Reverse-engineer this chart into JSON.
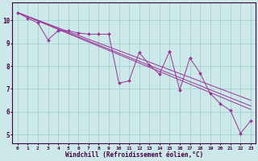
{
  "background_color": "#cce8e8",
  "line_color": "#993399",
  "grid_color": "#99cccc",
  "xlabel": "Windchill (Refroidissement éolien,°C)",
  "xlim": [
    -0.5,
    23.5
  ],
  "ylim": [
    4.6,
    10.8
  ],
  "yticks": [
    5,
    6,
    7,
    8,
    9,
    10
  ],
  "xticks": [
    0,
    1,
    2,
    3,
    4,
    5,
    6,
    7,
    8,
    9,
    10,
    11,
    12,
    13,
    14,
    15,
    16,
    17,
    18,
    19,
    20,
    21,
    22,
    23
  ],
  "series": [
    {
      "x": [
        0,
        1,
        2,
        3,
        4,
        5,
        6,
        7,
        8,
        9,
        10,
        11,
        12,
        13,
        14,
        15,
        16,
        17,
        18,
        19,
        20,
        21,
        22,
        23
      ],
      "y": [
        10.35,
        10.1,
        9.9,
        9.15,
        9.55,
        9.55,
        9.45,
        9.4,
        9.4,
        9.4,
        7.25,
        7.35,
        8.6,
        8.05,
        7.65,
        8.65,
        6.95,
        8.35,
        7.7,
        6.8,
        6.35,
        6.05,
        5.05,
        5.6
      ],
      "marker": true
    },
    {
      "x": [
        0,
        23
      ],
      "y": [
        10.35,
        6.1
      ],
      "marker": false
    },
    {
      "x": [
        0,
        23
      ],
      "y": [
        10.35,
        6.5
      ],
      "marker": false
    },
    {
      "x": [
        0,
        23
      ],
      "y": [
        10.35,
        6.25
      ],
      "marker": false
    }
  ]
}
